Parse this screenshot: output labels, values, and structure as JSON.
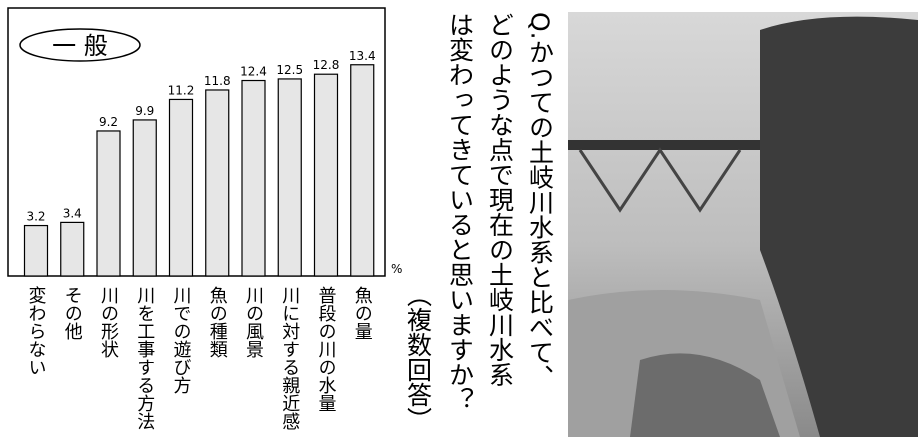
{
  "chart_data": {
    "type": "bar",
    "badge": "一 般",
    "title": [
      "Q.かつての土岐川水系と比べて、",
      "どのような点で現在の土岐川水系",
      "は変わってきていると思いますか？"
    ],
    "subtitle": "（複数回答）",
    "y_unit": "%",
    "categories": [
      "変わらない",
      "その他",
      "川の形状",
      "川を工事する方法",
      "川での遊び方",
      "魚の種類",
      "川の風景",
      "川に対する親近感",
      "普段の川の水量",
      "魚の量"
    ],
    "values": [
      3.2,
      3.4,
      9.2,
      9.9,
      11.2,
      11.8,
      12.4,
      12.5,
      12.8,
      13.4
    ],
    "color": "#e6e6e6",
    "ylim": [
      0,
      17
    ]
  }
}
